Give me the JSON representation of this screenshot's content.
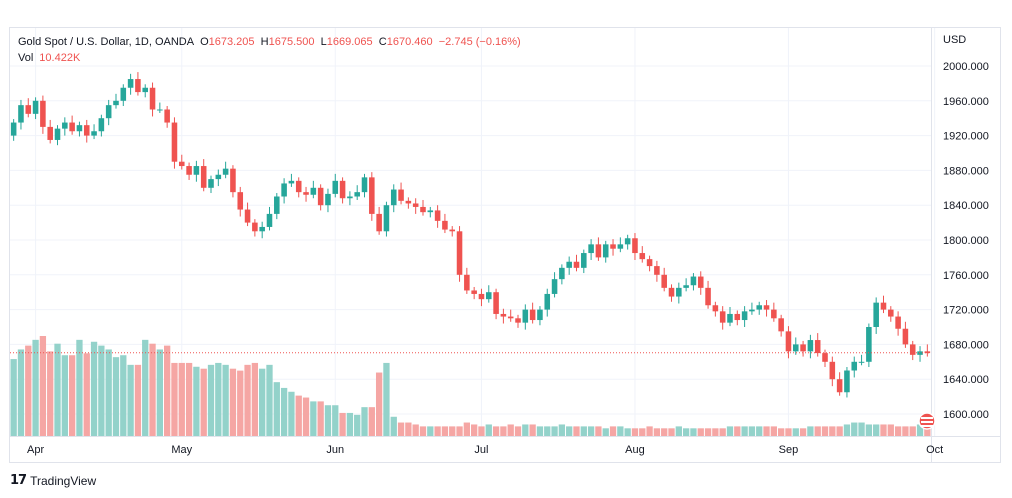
{
  "legend": {
    "symbol": "Gold Spot / U.S. Dollar, 1D, OANDA",
    "o_key": "O",
    "o_val": "1673.205",
    "h_key": "H",
    "h_val": "1675.500",
    "l_key": "L",
    "l_val": "1669.065",
    "c_key": "C",
    "c_val": "1670.460",
    "change": "−2.745 (−0.16%)",
    "vol_key": "Vol",
    "vol_val": "10.422K"
  },
  "currency": "USD",
  "branding": {
    "logo": "17",
    "name": "TradingView"
  },
  "colors": {
    "up": "#26a69a",
    "down": "#ef5350",
    "up_vol": "#93d2ca",
    "down_vol": "#f5a6a4",
    "grid": "#f0f3fa",
    "last_line": "#ef5350"
  },
  "chart_data": {
    "type": "candlestick",
    "y_ticks": [
      "2000.000",
      "1960.000",
      "1920.000",
      "1880.000",
      "1840.000",
      "1800.000",
      "1760.000",
      "1720.000",
      "1680.000",
      "1640.000",
      "1600.000"
    ],
    "ylim": [
      1570,
      2025
    ],
    "x_ticks": [
      {
        "label": "Apr",
        "index": 3
      },
      {
        "label": "May",
        "index": 23
      },
      {
        "label": "Jun",
        "index": 44
      },
      {
        "label": "Jul",
        "index": 64
      },
      {
        "label": "Aug",
        "index": 85
      },
      {
        "label": "Sep",
        "index": 106
      },
      {
        "label": "Oct",
        "index": 126
      }
    ],
    "last_price": 1670.46,
    "closes": [
      1935,
      1955,
      1945,
      1960,
      1930,
      1915,
      1928,
      1935,
      1925,
      1932,
      1920,
      1925,
      1940,
      1955,
      1960,
      1975,
      1985,
      1970,
      1975,
      1950,
      1950,
      1935,
      1890,
      1885,
      1875,
      1885,
      1860,
      1870,
      1875,
      1882,
      1855,
      1835,
      1820,
      1810,
      1815,
      1830,
      1850,
      1865,
      1868,
      1855,
      1852,
      1860,
      1840,
      1853,
      1868,
      1848,
      1850,
      1855,
      1872,
      1830,
      1810,
      1840,
      1858,
      1845,
      1842,
      1838,
      1832,
      1834,
      1822,
      1812,
      1810,
      1760,
      1742,
      1738,
      1732,
      1740,
      1715,
      1712,
      1710,
      1705,
      1720,
      1708,
      1720,
      1738,
      1755,
      1768,
      1775,
      1768,
      1785,
      1795,
      1780,
      1795,
      1790,
      1795,
      1802,
      1785,
      1778,
      1770,
      1760,
      1745,
      1735,
      1745,
      1748,
      1758,
      1745,
      1725,
      1718,
      1705,
      1715,
      1708,
      1718,
      1720,
      1725,
      1720,
      1710,
      1695,
      1672,
      1680,
      1672,
      1685,
      1670,
      1660,
      1640,
      1625,
      1650,
      1660,
      1660,
      1700,
      1728,
      1720,
      1712,
      1698,
      1680,
      1668,
      1672,
      1670
    ],
    "volumes": [
      40,
      45,
      47,
      50,
      52,
      44,
      48,
      42,
      42,
      50,
      43,
      49,
      47,
      45,
      41,
      42,
      37,
      37,
      50,
      48,
      45,
      47,
      38,
      38,
      38,
      36,
      35,
      37,
      38,
      37,
      35,
      34,
      37,
      38,
      35,
      37,
      28,
      25,
      23,
      21,
      20,
      18,
      18,
      16,
      16,
      12,
      12,
      11,
      15,
      15,
      33,
      38,
      10,
      7,
      7,
      6,
      5,
      5,
      5,
      5,
      5,
      5,
      7,
      6,
      5,
      6,
      5,
      5,
      6,
      5,
      6,
      6,
      5,
      5,
      5,
      6,
      5,
      5,
      5,
      5,
      5,
      4,
      5,
      5,
      4,
      4,
      4,
      5,
      4,
      4,
      4,
      5,
      4,
      4,
      4,
      4,
      4,
      4,
      5,
      5,
      5,
      5,
      5,
      5,
      5,
      4,
      4,
      4,
      4,
      5,
      5,
      5,
      5,
      5,
      6,
      7,
      7,
      6,
      6,
      6,
      6,
      5,
      5,
      5,
      6,
      5
    ]
  }
}
